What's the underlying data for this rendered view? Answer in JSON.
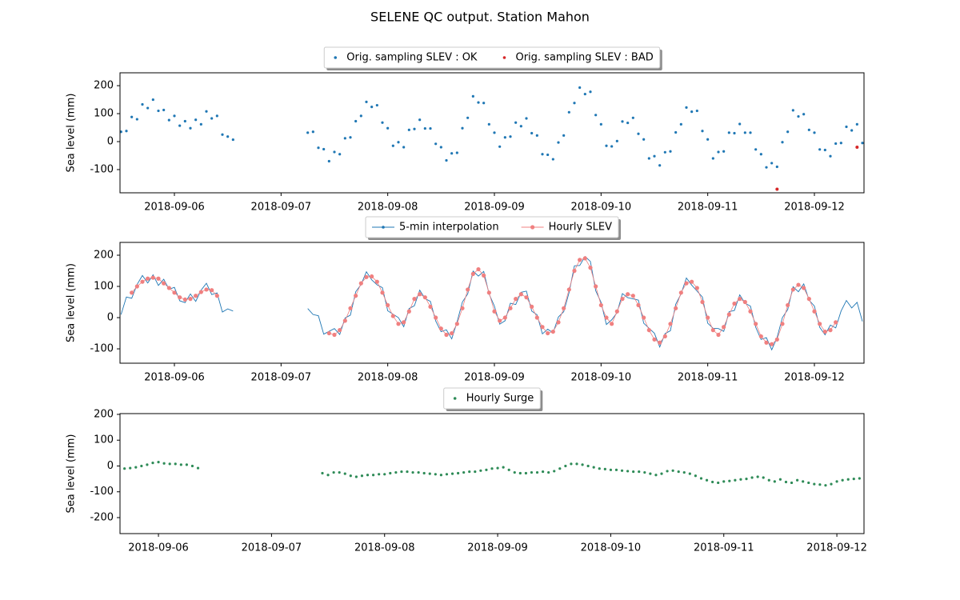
{
  "title": "SELENE QC output. Station Mahon",
  "chart_data": [
    {
      "type": "scatter",
      "ylabel": "Sea level (mm)",
      "legend": "upper center",
      "xlim": [
        5.49,
        12.465
      ],
      "ylim": [
        -183,
        246
      ],
      "yticks": [
        -100,
        0,
        100,
        200
      ],
      "xticks": [
        {
          "value": 6,
          "label": "2018-09-06"
        },
        {
          "value": 7,
          "label": "2018-09-07"
        },
        {
          "value": 8,
          "label": "2018-09-08"
        },
        {
          "value": 9,
          "label": "2018-09-09"
        },
        {
          "value": 10,
          "label": "2018-09-10"
        },
        {
          "value": 11,
          "label": "2018-09-11"
        },
        {
          "value": 12,
          "label": "2018-09-12"
        }
      ],
      "x": [
        5.5,
        5.55,
        5.6,
        5.65,
        5.7,
        5.75,
        5.8,
        5.85,
        5.9,
        5.95,
        6,
        6.05,
        6.1,
        6.15,
        6.2,
        6.25,
        6.3,
        6.35,
        6.4,
        6.45,
        6.5,
        6.55,
        6.6,
        6.65,
        6.7,
        6.75,
        6.8,
        6.85,
        6.9,
        6.95,
        7,
        7.05,
        7.1,
        7.15,
        7.2,
        7.25,
        7.3,
        7.35,
        7.4,
        7.45,
        7.5,
        7.55,
        7.6,
        7.65,
        7.7,
        7.75,
        7.8,
        7.85,
        7.9,
        7.95,
        8,
        8.05,
        8.1,
        8.15,
        8.2,
        8.25,
        8.3,
        8.35,
        8.4,
        8.45,
        8.5,
        8.55,
        8.6,
        8.65,
        8.7,
        8.75,
        8.8,
        8.85,
        8.9,
        8.95,
        9,
        9.05,
        9.1,
        9.15,
        9.2,
        9.25,
        9.3,
        9.35,
        9.4,
        9.45,
        9.5,
        9.55,
        9.6,
        9.65,
        9.7,
        9.75,
        9.8,
        9.85,
        9.9,
        9.95,
        10,
        10.05,
        10.1,
        10.15,
        10.2,
        10.25,
        10.3,
        10.35,
        10.4,
        10.45,
        10.5,
        10.55,
        10.6,
        10.65,
        10.7,
        10.75,
        10.8,
        10.85,
        10.9,
        10.95,
        11,
        11.05,
        11.1,
        11.15,
        11.2,
        11.25,
        11.3,
        11.35,
        11.4,
        11.45,
        11.5,
        11.55,
        11.6,
        11.65,
        11.7,
        11.75,
        11.8,
        11.85,
        11.9,
        11.95,
        12,
        12.05,
        12.1,
        12.15,
        12.2,
        12.25,
        12.3,
        12.35,
        12.4,
        12.45
      ],
      "series": [
        {
          "name": "Orig. sampling SLEV : OK",
          "color": "#1f77b4",
          "mode": "markers",
          "values": [
            35,
            38,
            88,
            80,
            133,
            120,
            150,
            110,
            113,
            77,
            92,
            57,
            73,
            48,
            78,
            62,
            108,
            83,
            92,
            25,
            18,
            7,
            null,
            null,
            null,
            null,
            null,
            null,
            null,
            null,
            null,
            null,
            null,
            null,
            null,
            32,
            35,
            -22,
            -27,
            -70,
            -37,
            -45,
            12,
            15,
            73,
            92,
            142,
            124,
            130,
            68,
            48,
            -15,
            -2,
            -20,
            42,
            45,
            78,
            47,
            47,
            -8,
            -20,
            -67,
            -42,
            -40,
            48,
            85,
            162,
            140,
            138,
            62,
            32,
            -18,
            15,
            18,
            68,
            55,
            83,
            30,
            22,
            -45,
            -47,
            -63,
            -3,
            22,
            105,
            138,
            193,
            170,
            178,
            95,
            62,
            -15,
            -17,
            2,
            72,
            67,
            85,
            28,
            8,
            -60,
            -52,
            -85,
            -38,
            -35,
            33,
            62,
            122,
            107,
            110,
            38,
            8,
            -60,
            -37,
            -35,
            32,
            30,
            63,
            32,
            32,
            -28,
            -45,
            -92,
            -77,
            -90,
            -2,
            35,
            112,
            90,
            98,
            42,
            32,
            -28,
            -30,
            -52,
            -7,
            -5,
            53,
            40,
            62,
            -5
          ]
        },
        {
          "name": "Orig. sampling SLEV : BAD",
          "color": "#d62728",
          "mode": "markers",
          "x": [
            11.65,
            12.4
          ],
          "values": [
            -170,
            -20
          ]
        }
      ]
    },
    {
      "type": "line",
      "ylabel": "Sea level (mm)",
      "legend": "upper center",
      "xlim": [
        5.49,
        12.465
      ],
      "ylim": [
        -146,
        241
      ],
      "yticks": [
        -100,
        0,
        100,
        200
      ],
      "xticks": [
        {
          "value": 6,
          "label": "2018-09-06"
        },
        {
          "value": 7,
          "label": "2018-09-07"
        },
        {
          "value": 8,
          "label": "2018-09-08"
        },
        {
          "value": 9,
          "label": "2018-09-09"
        },
        {
          "value": 10,
          "label": "2018-09-10"
        },
        {
          "value": 11,
          "label": "2018-09-11"
        },
        {
          "value": 12,
          "label": "2018-09-12"
        }
      ],
      "x": [
        5.5,
        5.55,
        5.6,
        5.65,
        5.7,
        5.75,
        5.8,
        5.85,
        5.9,
        5.95,
        6,
        6.05,
        6.1,
        6.15,
        6.2,
        6.25,
        6.3,
        6.35,
        6.4,
        6.45,
        6.5,
        6.55,
        6.6,
        6.65,
        6.7,
        6.75,
        6.8,
        6.85,
        6.9,
        6.95,
        7,
        7.05,
        7.1,
        7.15,
        7.2,
        7.25,
        7.3,
        7.35,
        7.4,
        7.45,
        7.5,
        7.55,
        7.6,
        7.65,
        7.7,
        7.75,
        7.8,
        7.85,
        7.9,
        7.95,
        8,
        8.05,
        8.1,
        8.15,
        8.2,
        8.25,
        8.3,
        8.35,
        8.4,
        8.45,
        8.5,
        8.55,
        8.6,
        8.65,
        8.7,
        8.75,
        8.8,
        8.85,
        8.9,
        8.95,
        9,
        9.05,
        9.1,
        9.15,
        9.2,
        9.25,
        9.3,
        9.35,
        9.4,
        9.45,
        9.5,
        9.55,
        9.6,
        9.65,
        9.7,
        9.75,
        9.8,
        9.85,
        9.9,
        9.95,
        10,
        10.05,
        10.1,
        10.15,
        10.2,
        10.25,
        10.3,
        10.35,
        10.4,
        10.45,
        10.5,
        10.55,
        10.6,
        10.65,
        10.7,
        10.75,
        10.8,
        10.85,
        10.9,
        10.95,
        11,
        11.05,
        11.1,
        11.15,
        11.2,
        11.25,
        11.3,
        11.35,
        11.4,
        11.45,
        11.5,
        11.55,
        11.6,
        11.65,
        11.7,
        11.75,
        11.8,
        11.85,
        11.9,
        11.95,
        12,
        12.05,
        12.1,
        12.15,
        12.2,
        12.25,
        12.3,
        12.35,
        12.4,
        12.45
      ],
      "series": [
        {
          "name": "5-min interpolation",
          "color": "#1f77b4",
          "mode": "lines",
          "values": [
            10,
            66,
            62,
            106,
            135,
            111,
            137,
            103,
            123,
            91,
            97,
            54,
            48,
            76,
            52,
            88,
            110,
            74,
            79,
            18,
            28,
            21,
            null,
            null,
            null,
            null,
            null,
            null,
            null,
            null,
            null,
            null,
            null,
            null,
            null,
            29,
            10,
            6,
            -53,
            -44,
            -35,
            -54,
            -1,
            8,
            83,
            106,
            147,
            121,
            105,
            96,
            22,
            11,
            0,
            -29,
            29,
            38,
            88,
            61,
            52,
            -11,
            -45,
            -39,
            -68,
            -14,
            50,
            76,
            149,
            133,
            148,
            76,
            37,
            -21,
            -10,
            46,
            42,
            81,
            85,
            21,
            9,
            -52,
            -37,
            -49,
            2,
            19,
            80,
            166,
            167,
            196,
            180,
            86,
            49,
            -22,
            -7,
            16,
            77,
            64,
            60,
            56,
            -18,
            -34,
            -50,
            -94,
            -51,
            -42,
            43,
            76,
            127,
            104,
            85,
            66,
            -18,
            -34,
            -35,
            -44,
            19,
            23,
            73,
            46,
            37,
            -31,
            -70,
            -64,
            -103,
            -64,
            0,
            26,
            99,
            83,
            108,
            56,
            37,
            -31,
            -55,
            -24,
            -33,
            21,
            55,
            31,
            49,
            -12
          ]
        },
        {
          "name": "Hourly SLEV",
          "color": "#f08080",
          "mode": "lines+markers",
          "values": [
            null,
            null,
            80,
            100,
            115,
            125,
            128,
            125,
            110,
            95,
            80,
            65,
            58,
            60,
            70,
            82,
            90,
            88,
            70,
            null,
            null,
            null,
            null,
            null,
            null,
            null,
            null,
            null,
            null,
            null,
            null,
            null,
            null,
            null,
            null,
            null,
            null,
            null,
            null,
            -50,
            -55,
            -40,
            -10,
            30,
            70,
            110,
            130,
            132,
            115,
            80,
            40,
            5,
            -20,
            -15,
            20,
            60,
            75,
            65,
            35,
            0,
            -35,
            -55,
            -50,
            -20,
            30,
            90,
            140,
            155,
            135,
            80,
            20,
            -10,
            0,
            30,
            60,
            75,
            65,
            35,
            0,
            -30,
            -50,
            -45,
            -15,
            30,
            90,
            150,
            185,
            190,
            160,
            100,
            40,
            0,
            -20,
            20,
            60,
            75,
            70,
            40,
            0,
            -40,
            -70,
            -80,
            -60,
            -20,
            30,
            80,
            110,
            115,
            95,
            50,
            0,
            -40,
            -55,
            -30,
            10,
            45,
            60,
            50,
            20,
            -20,
            -60,
            -80,
            -85,
            -70,
            -20,
            40,
            90,
            105,
            95,
            60,
            20,
            -20,
            -45,
            -40,
            -15,
            null,
            null,
            null,
            null,
            null
          ]
        }
      ]
    },
    {
      "type": "scatter",
      "ylabel": "Sea level (mm)",
      "legend": "upper center",
      "xlim": [
        5.66,
        12.24
      ],
      "ylim": [
        -262,
        203
      ],
      "yticks": [
        -200,
        -100,
        0,
        100,
        200
      ],
      "xticks": [
        {
          "value": 6,
          "label": "2018-09-06"
        },
        {
          "value": 7,
          "label": "2018-09-07"
        },
        {
          "value": 8,
          "label": "2018-09-08"
        },
        {
          "value": 9,
          "label": "2018-09-09"
        },
        {
          "value": 10,
          "label": "2018-09-10"
        },
        {
          "value": 11,
          "label": "2018-09-11"
        },
        {
          "value": 12,
          "label": "2018-09-12"
        }
      ],
      "x": [
        5.7,
        5.75,
        5.8,
        5.85,
        5.9,
        5.95,
        6,
        6.05,
        6.1,
        6.15,
        6.2,
        6.25,
        6.3,
        6.35,
        6.4,
        6.45,
        6.5,
        6.55,
        6.6,
        6.65,
        6.7,
        6.75,
        6.8,
        6.85,
        6.9,
        6.95,
        7,
        7.05,
        7.1,
        7.15,
        7.2,
        7.25,
        7.3,
        7.35,
        7.4,
        7.45,
        7.5,
        7.55,
        7.6,
        7.65,
        7.7,
        7.75,
        7.8,
        7.85,
        7.9,
        7.95,
        8,
        8.05,
        8.1,
        8.15,
        8.2,
        8.25,
        8.3,
        8.35,
        8.4,
        8.45,
        8.5,
        8.55,
        8.6,
        8.65,
        8.7,
        8.75,
        8.8,
        8.85,
        8.9,
        8.95,
        9,
        9.05,
        9.1,
        9.15,
        9.2,
        9.25,
        9.3,
        9.35,
        9.4,
        9.45,
        9.5,
        9.55,
        9.6,
        9.65,
        9.7,
        9.75,
        9.8,
        9.85,
        9.9,
        9.95,
        10,
        10.05,
        10.1,
        10.15,
        10.2,
        10.25,
        10.3,
        10.35,
        10.4,
        10.45,
        10.5,
        10.55,
        10.6,
        10.65,
        10.7,
        10.75,
        10.8,
        10.85,
        10.9,
        10.95,
        11,
        11.05,
        11.1,
        11.15,
        11.2,
        11.25,
        11.3,
        11.35,
        11.4,
        11.45,
        11.5,
        11.55,
        11.6,
        11.65,
        11.7,
        11.75,
        11.8,
        11.85,
        11.9,
        11.95,
        12,
        12.05,
        12.1,
        12.15,
        12.2,
        12.25
      ],
      "series": [
        {
          "name": "Hourly Surge",
          "color": "#2e8b57",
          "mode": "markers",
          "values": [
            -10,
            -8,
            -5,
            0,
            5,
            12,
            15,
            10,
            8,
            8,
            5,
            5,
            0,
            -8,
            null,
            null,
            null,
            null,
            null,
            null,
            null,
            null,
            null,
            null,
            null,
            null,
            null,
            null,
            null,
            null,
            null,
            null,
            null,
            null,
            null,
            -28,
            -35,
            -25,
            -25,
            -30,
            -38,
            -42,
            -38,
            -35,
            -35,
            -32,
            -32,
            -28,
            -25,
            -22,
            -22,
            -25,
            -25,
            -28,
            -30,
            -32,
            -35,
            -32,
            -30,
            -28,
            -25,
            -22,
            -22,
            -18,
            -15,
            -10,
            -8,
            -5,
            -15,
            -25,
            -28,
            -28,
            -25,
            -25,
            -22,
            -25,
            -20,
            -10,
            0,
            8,
            8,
            5,
            0,
            -5,
            -10,
            -12,
            -15,
            -15,
            -18,
            -20,
            -22,
            -22,
            -25,
            -30,
            -35,
            -30,
            -20,
            -18,
            -22,
            -25,
            -30,
            -38,
            -48,
            -55,
            -62,
            -65,
            -60,
            -58,
            -55,
            -52,
            -50,
            -45,
            -42,
            -45,
            -55,
            -60,
            -52,
            -62,
            -65,
            -55,
            -60,
            -65,
            -70,
            -72,
            -75,
            -70,
            -60,
            -55,
            -52,
            -50,
            -48,
            -50
          ]
        }
      ]
    }
  ]
}
